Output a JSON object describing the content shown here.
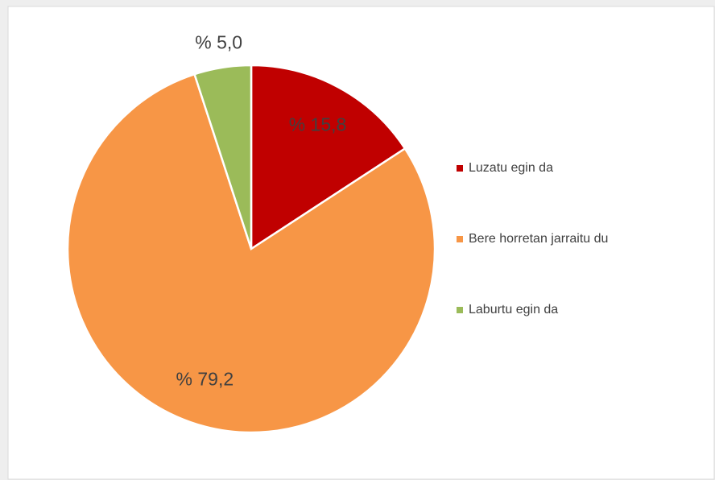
{
  "chart_data": {
    "type": "pie",
    "categories": [
      "Luzatu egin da",
      "Bere horretan jarraitu du",
      "Laburtu egin da"
    ],
    "values": [
      15.8,
      79.2,
      5.0
    ],
    "value_labels": [
      "% 15,8",
      "% 79,2",
      "% 5,0"
    ],
    "colors": [
      "#c00000",
      "#f79646",
      "#9bbb59"
    ],
    "legend": "right"
  }
}
